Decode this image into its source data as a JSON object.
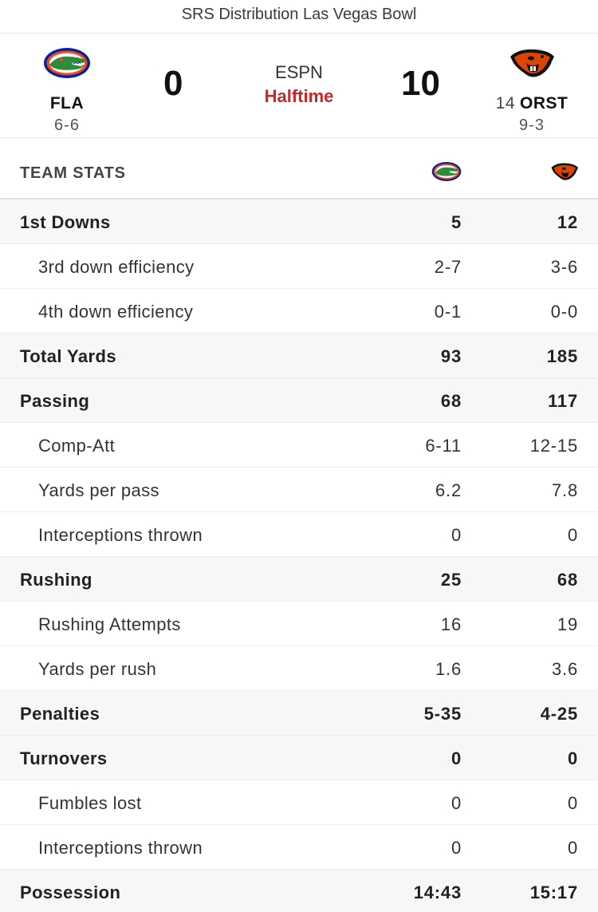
{
  "game": {
    "title": "SRS Distribution Las Vegas Bowl",
    "network": "ESPN",
    "status": "Halftime"
  },
  "home": {
    "abbr": "FLA",
    "rank": "",
    "record": "6-6",
    "score": "0",
    "logo_icon": "gators-logo-icon",
    "colors": {
      "primary": "#0021A5",
      "secondary": "#FA4616",
      "tertiary": "#2e8b3c"
    }
  },
  "away": {
    "abbr": "ORST",
    "rank": "14",
    "record": "9-3",
    "score": "10",
    "logo_icon": "beavers-logo-icon",
    "colors": {
      "primary": "#DC4405",
      "secondary": "#000000"
    }
  },
  "stats": {
    "header": "TEAM STATS",
    "rows": [
      {
        "label": "1st Downs",
        "home": "5",
        "away": "12",
        "level": "main"
      },
      {
        "label": "3rd down efficiency",
        "home": "2-7",
        "away": "3-6",
        "level": "sub"
      },
      {
        "label": "4th down efficiency",
        "home": "0-1",
        "away": "0-0",
        "level": "sub"
      },
      {
        "label": "Total Yards",
        "home": "93",
        "away": "185",
        "level": "main"
      },
      {
        "label": "Passing",
        "home": "68",
        "away": "117",
        "level": "main"
      },
      {
        "label": "Comp-Att",
        "home": "6-11",
        "away": "12-15",
        "level": "sub"
      },
      {
        "label": "Yards per pass",
        "home": "6.2",
        "away": "7.8",
        "level": "sub"
      },
      {
        "label": "Interceptions thrown",
        "home": "0",
        "away": "0",
        "level": "sub"
      },
      {
        "label": "Rushing",
        "home": "25",
        "away": "68",
        "level": "main"
      },
      {
        "label": "Rushing Attempts",
        "home": "16",
        "away": "19",
        "level": "sub"
      },
      {
        "label": "Yards per rush",
        "home": "1.6",
        "away": "3.6",
        "level": "sub"
      },
      {
        "label": "Penalties",
        "home": "5-35",
        "away": "4-25",
        "level": "main"
      },
      {
        "label": "Turnovers",
        "home": "0",
        "away": "0",
        "level": "main"
      },
      {
        "label": "Fumbles lost",
        "home": "0",
        "away": "0",
        "level": "sub"
      },
      {
        "label": "Interceptions thrown",
        "home": "0",
        "away": "0",
        "level": "sub"
      },
      {
        "label": "Possession",
        "home": "14:43",
        "away": "15:17",
        "level": "main"
      }
    ]
  }
}
